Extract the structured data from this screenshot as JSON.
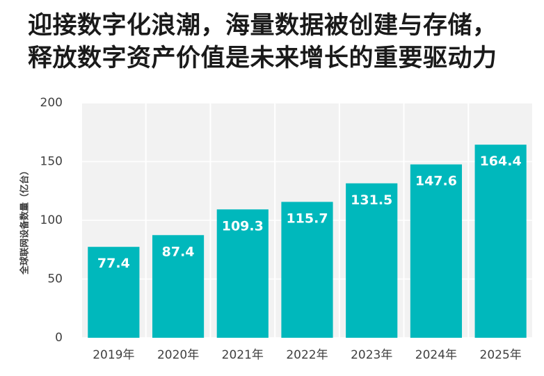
{
  "title_lines": [
    "迎接数字化浪潮，海量数据被创建与存储，",
    "释放数字资产价值是未来增长的重要驱动力"
  ],
  "chart_data": {
    "type": "bar",
    "title": "迎接数字化浪潮，海量数据被创建与存储，释放数字资产价值是未来增长的重要驱动力",
    "ylabel": "全球联网设备数量（亿台）",
    "xlabel": "",
    "categories": [
      "2019年",
      "2020年",
      "2021年",
      "2022年",
      "2023年",
      "2024年",
      "2025年"
    ],
    "values": [
      77.4,
      87.4,
      109.3,
      115.7,
      131.5,
      147.6,
      164.4
    ],
    "value_labels": [
      "77.4",
      "87.4",
      "109.3",
      "115.7",
      "131.5",
      "147.6",
      "164.4"
    ],
    "ylim": [
      0,
      200
    ],
    "yticks": [
      0,
      50,
      100,
      150,
      200
    ],
    "ytick_labels": [
      "0",
      "50",
      "100",
      "150",
      "200"
    ],
    "grid": true,
    "bar_color": "#00b8bc",
    "plot_background": "#f2f2f2",
    "label_color": "#ffffff"
  }
}
